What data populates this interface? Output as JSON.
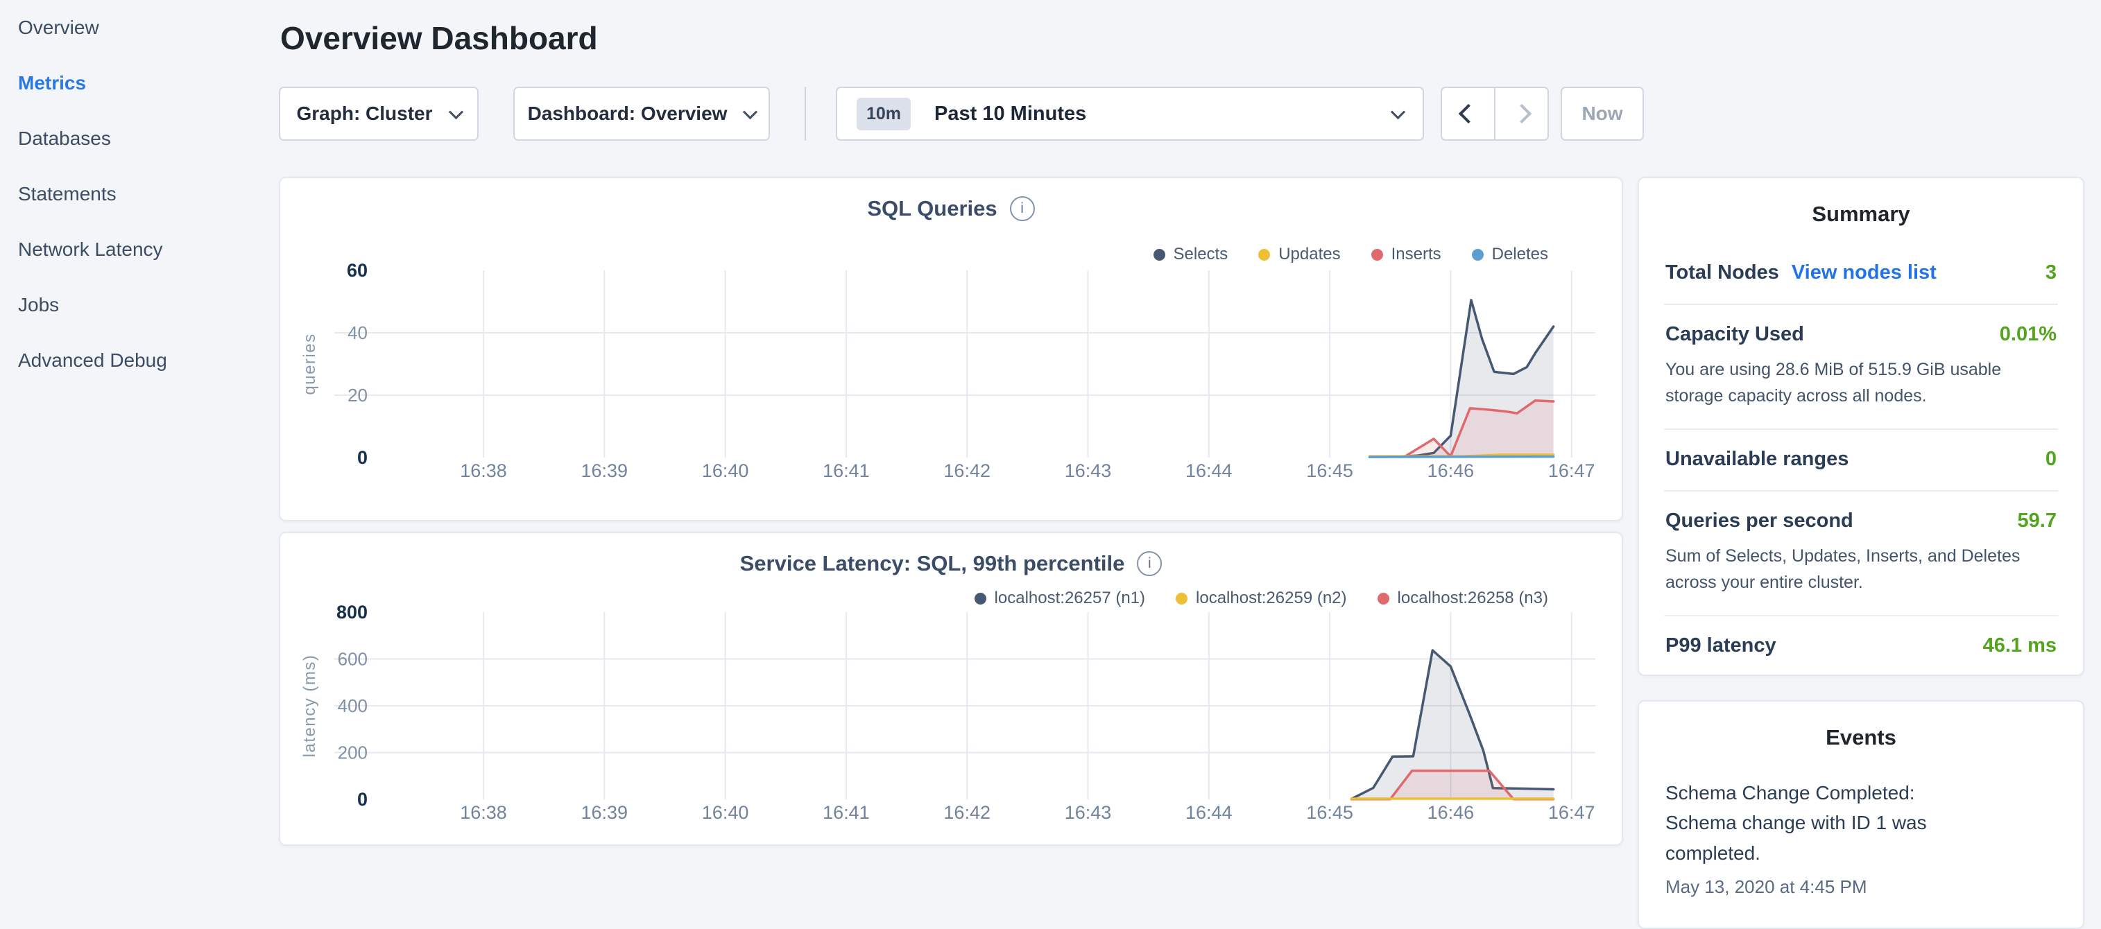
{
  "sidebar": {
    "items": [
      {
        "label": "Overview",
        "active": false
      },
      {
        "label": "Metrics",
        "active": true
      },
      {
        "label": "Databases",
        "active": false
      },
      {
        "label": "Statements",
        "active": false
      },
      {
        "label": "Network Latency",
        "active": false
      },
      {
        "label": "Jobs",
        "active": false
      },
      {
        "label": "Advanced Debug",
        "active": false
      }
    ]
  },
  "header": {
    "title": "Overview Dashboard"
  },
  "toolbar": {
    "graph_dropdown_label": "Graph: Cluster",
    "dashboard_dropdown_label": "Dashboard: Overview",
    "time_window_badge": "10m",
    "time_window_label": "Past 10 Minutes",
    "now_label": "Now"
  },
  "icons": {
    "info": "i"
  },
  "colors": {
    "accent_blue": "#2979e0",
    "link_blue": "#2273e7",
    "value_green": "#53a41e",
    "series_navy": "#475872",
    "series_yellow": "#eebe34",
    "series_red": "#e0696d",
    "series_blue": "#5d9ed2"
  },
  "chart_data": [
    {
      "type": "line",
      "title": "SQL Queries",
      "ylabel": "queries",
      "xlabel": "",
      "x_ticks": [
        "16:38",
        "16:39",
        "16:40",
        "16:41",
        "16:42",
        "16:43",
        "16:44",
        "16:45",
        "16:46",
        "16:47"
      ],
      "x_unit": "minutes after 16:38",
      "ylim": [
        0,
        60
      ],
      "y_ticks": [
        {
          "value": 0,
          "label": "0",
          "bold": true
        },
        {
          "value": 20,
          "label": "20",
          "bold": false
        },
        {
          "value": 40,
          "label": "40",
          "bold": false
        },
        {
          "value": 60,
          "label": "60",
          "bold": true
        }
      ],
      "grid_y": [
        20,
        40
      ],
      "legend_position": "top-right",
      "paint_order": [
        0,
        2,
        1,
        3
      ],
      "series": [
        {
          "name": "Selects",
          "color": "#475872",
          "fill": "rgba(71,88,114,0.13)",
          "points": [
            [
              7.33,
              0.3
            ],
            [
              7.55,
              0.3
            ],
            [
              7.72,
              0.6
            ],
            [
              7.86,
              1.5
            ],
            [
              8.0,
              7
            ],
            [
              8.17,
              50.5
            ],
            [
              8.26,
              38
            ],
            [
              8.36,
              27.5
            ],
            [
              8.52,
              26.8
            ],
            [
              8.63,
              29
            ],
            [
              8.7,
              33.5
            ],
            [
              8.85,
              42
            ]
          ]
        },
        {
          "name": "Updates",
          "color": "#eebe34",
          "fill": null,
          "points": [
            [
              7.33,
              0.4
            ],
            [
              8.1,
              0.4
            ],
            [
              8.4,
              0.9
            ],
            [
              8.85,
              0.9
            ]
          ]
        },
        {
          "name": "Inserts",
          "color": "#e0696d",
          "fill": "rgba(224,105,109,0.13)",
          "points": [
            [
              7.33,
              0.2
            ],
            [
              7.62,
              0.3
            ],
            [
              7.86,
              6
            ],
            [
              8.0,
              0.4
            ],
            [
              8.16,
              15.8
            ],
            [
              8.3,
              15.4
            ],
            [
              8.45,
              14.8
            ],
            [
              8.55,
              14.2
            ],
            [
              8.7,
              18.3
            ],
            [
              8.85,
              18
            ]
          ]
        },
        {
          "name": "Deletes",
          "color": "#5d9ed2",
          "fill": null,
          "points": [
            [
              7.33,
              0.2
            ],
            [
              8.85,
              0.3
            ]
          ]
        }
      ]
    },
    {
      "type": "line",
      "title": "Service Latency: SQL, 99th percentile",
      "ylabel": "latency (ms)",
      "xlabel": "",
      "x_ticks": [
        "16:38",
        "16:39",
        "16:40",
        "16:41",
        "16:42",
        "16:43",
        "16:44",
        "16:45",
        "16:46",
        "16:47"
      ],
      "x_unit": "minutes after 16:38",
      "ylim": [
        0,
        800
      ],
      "y_ticks": [
        {
          "value": 0,
          "label": "0",
          "bold": true
        },
        {
          "value": 200,
          "label": "200",
          "bold": false
        },
        {
          "value": 400,
          "label": "400",
          "bold": false
        },
        {
          "value": 600,
          "label": "600",
          "bold": false
        },
        {
          "value": 800,
          "label": "800",
          "bold": true
        }
      ],
      "grid_y": [
        200,
        400,
        600
      ],
      "legend_position": "top-right",
      "paint_order": [
        0,
        2,
        1
      ],
      "series": [
        {
          "name": "localhost:26257 (n1)",
          "color": "#475872",
          "fill": "rgba(71,88,114,0.13)",
          "points": [
            [
              7.18,
              2
            ],
            [
              7.36,
              49
            ],
            [
              7.52,
              183
            ],
            [
              7.69,
              184
            ],
            [
              7.85,
              637
            ],
            [
              8.0,
              568
            ],
            [
              8.16,
              359
            ],
            [
              8.27,
              208
            ],
            [
              8.35,
              48
            ],
            [
              8.6,
              46
            ],
            [
              8.85,
              43
            ]
          ]
        },
        {
          "name": "localhost:26259 (n2)",
          "color": "#eebe34",
          "fill": null,
          "points": [
            [
              7.18,
              3
            ],
            [
              8.85,
              3
            ]
          ]
        },
        {
          "name": "localhost:26258 (n3)",
          "color": "#e0696d",
          "fill": "rgba(224,105,109,0.13)",
          "points": [
            [
              7.18,
              1
            ],
            [
              7.5,
              1
            ],
            [
              7.68,
              122
            ],
            [
              8.32,
              122
            ],
            [
              8.52,
              1
            ],
            [
              8.85,
              1
            ]
          ]
        }
      ]
    }
  ],
  "summary": {
    "title": "Summary",
    "rows": [
      {
        "label": "Total Nodes",
        "link": "View nodes list",
        "value": "3",
        "desc": ""
      },
      {
        "label": "Capacity Used",
        "link": "",
        "value": "0.01%",
        "desc": "You are using 28.6 MiB of 515.9 GiB usable storage capacity across all nodes."
      },
      {
        "label": "Unavailable ranges",
        "link": "",
        "value": "0",
        "desc": ""
      },
      {
        "label": "Queries per second",
        "link": "",
        "value": "59.7",
        "desc": "Sum of Selects, Updates, Inserts, and Deletes across your entire cluster."
      },
      {
        "label": "P99 latency",
        "link": "",
        "value": "46.1 ms",
        "desc": ""
      }
    ]
  },
  "events": {
    "title": "Events",
    "items": [
      {
        "message": "Schema Change Completed: Schema change with ID 1 was completed.",
        "timestamp": "May 13, 2020 at 4:45 PM"
      }
    ]
  }
}
